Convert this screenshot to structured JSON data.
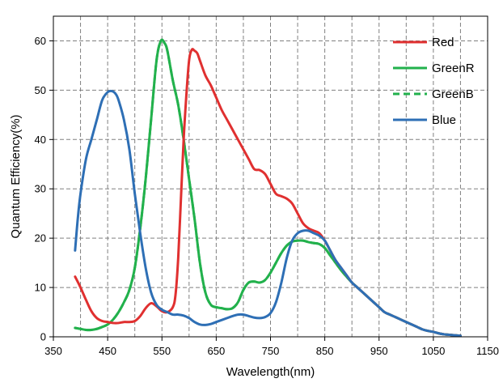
{
  "chart_data": {
    "type": "line",
    "title": "",
    "xlabel": "Wavelength(nm)",
    "ylabel": "Quantum Efficiency(%)",
    "xlim": [
      350,
      1150
    ],
    "ylim": [
      0,
      65
    ],
    "xticks": [
      350,
      450,
      550,
      650,
      750,
      850,
      950,
      1050,
      1150
    ],
    "yticks": [
      0,
      10,
      20,
      30,
      40,
      50,
      60
    ],
    "xgrid": [
      350,
      400,
      450,
      500,
      550,
      600,
      650,
      700,
      750,
      800,
      850,
      900,
      950,
      1000,
      1050,
      1100,
      1150
    ],
    "grid": true,
    "legend_position": "top-right",
    "series": [
      {
        "name": "Red",
        "color": "#e03030",
        "dash": "solid",
        "points": [
          [
            390,
            12.2
          ],
          [
            400,
            10
          ],
          [
            410,
            7.5
          ],
          [
            420,
            5.2
          ],
          [
            430,
            3.8
          ],
          [
            440,
            3.2
          ],
          [
            450,
            3
          ],
          [
            460,
            2.8
          ],
          [
            470,
            2.8
          ],
          [
            480,
            3
          ],
          [
            490,
            3
          ],
          [
            500,
            3.2
          ],
          [
            510,
            4.2
          ],
          [
            520,
            5.8
          ],
          [
            530,
            6.8
          ],
          [
            540,
            6.2
          ],
          [
            550,
            5.2
          ],
          [
            560,
            5
          ],
          [
            570,
            6
          ],
          [
            575,
            8.5
          ],
          [
            580,
            16
          ],
          [
            585,
            28
          ],
          [
            590,
            40
          ],
          [
            595,
            49
          ],
          [
            600,
            56
          ],
          [
            605,
            58.2
          ],
          [
            610,
            58
          ],
          [
            615,
            57.5
          ],
          [
            620,
            56
          ],
          [
            630,
            53
          ],
          [
            640,
            51
          ],
          [
            650,
            48.5
          ],
          [
            660,
            46
          ],
          [
            670,
            44
          ],
          [
            680,
            42
          ],
          [
            690,
            40
          ],
          [
            700,
            38
          ],
          [
            710,
            36
          ],
          [
            720,
            34
          ],
          [
            730,
            33.8
          ],
          [
            740,
            33
          ],
          [
            750,
            31
          ],
          [
            760,
            29
          ],
          [
            770,
            28.5
          ],
          [
            780,
            28
          ],
          [
            790,
            27
          ],
          [
            800,
            25
          ],
          [
            810,
            23
          ],
          [
            820,
            22
          ],
          [
            830,
            21.5
          ],
          [
            840,
            21
          ],
          [
            850,
            19.5
          ],
          [
            860,
            17.5
          ],
          [
            870,
            15.5
          ],
          [
            880,
            14
          ],
          [
            890,
            12.5
          ],
          [
            900,
            11
          ],
          [
            910,
            10
          ],
          [
            920,
            9
          ],
          [
            930,
            8
          ],
          [
            940,
            7
          ],
          [
            950,
            6
          ],
          [
            960,
            5
          ],
          [
            970,
            4.5
          ],
          [
            980,
            4
          ],
          [
            990,
            3.5
          ],
          [
            1000,
            3
          ],
          [
            1010,
            2.5
          ],
          [
            1020,
            2
          ],
          [
            1030,
            1.5
          ],
          [
            1040,
            1.2
          ],
          [
            1050,
            1
          ],
          [
            1060,
            0.7
          ],
          [
            1070,
            0.5
          ],
          [
            1080,
            0.4
          ],
          [
            1090,
            0.3
          ],
          [
            1100,
            0.2
          ]
        ]
      },
      {
        "name": "GreenR",
        "color": "#22b14c",
        "dash": "solid",
        "points": [
          [
            390,
            1.8
          ],
          [
            400,
            1.6
          ],
          [
            410,
            1.4
          ],
          [
            420,
            1.4
          ],
          [
            430,
            1.6
          ],
          [
            440,
            2
          ],
          [
            450,
            2.5
          ],
          [
            460,
            3.5
          ],
          [
            470,
            5
          ],
          [
            480,
            7
          ],
          [
            490,
            9.5
          ],
          [
            500,
            14
          ],
          [
            510,
            22
          ],
          [
            520,
            32
          ],
          [
            530,
            44
          ],
          [
            540,
            56
          ],
          [
            548,
            60
          ],
          [
            555,
            59.5
          ],
          [
            560,
            58
          ],
          [
            570,
            52
          ],
          [
            580,
            47
          ],
          [
            590,
            40
          ],
          [
            600,
            32
          ],
          [
            610,
            24
          ],
          [
            620,
            15
          ],
          [
            630,
            9
          ],
          [
            640,
            6.5
          ],
          [
            650,
            6
          ],
          [
            660,
            5.8
          ],
          [
            670,
            5.6
          ],
          [
            680,
            5.8
          ],
          [
            690,
            7
          ],
          [
            700,
            9.5
          ],
          [
            710,
            11
          ],
          [
            720,
            11.2
          ],
          [
            730,
            11
          ],
          [
            740,
            11.5
          ],
          [
            750,
            13
          ],
          [
            760,
            15
          ],
          [
            770,
            17
          ],
          [
            780,
            18.5
          ],
          [
            790,
            19.3
          ],
          [
            800,
            19.5
          ],
          [
            810,
            19.5
          ],
          [
            820,
            19.2
          ],
          [
            830,
            19
          ],
          [
            840,
            18.8
          ],
          [
            850,
            18
          ],
          [
            860,
            16.5
          ],
          [
            870,
            15
          ],
          [
            880,
            13.5
          ],
          [
            890,
            12.2
          ],
          [
            900,
            11
          ],
          [
            910,
            10
          ],
          [
            920,
            9
          ],
          [
            930,
            8
          ],
          [
            940,
            7
          ],
          [
            950,
            6
          ],
          [
            960,
            5
          ],
          [
            970,
            4.5
          ],
          [
            980,
            4
          ],
          [
            990,
            3.5
          ],
          [
            1000,
            3
          ],
          [
            1010,
            2.5
          ],
          [
            1020,
            2
          ],
          [
            1030,
            1.5
          ],
          [
            1040,
            1.2
          ],
          [
            1050,
            1
          ],
          [
            1060,
            0.7
          ],
          [
            1070,
            0.5
          ],
          [
            1080,
            0.4
          ],
          [
            1090,
            0.3
          ],
          [
            1100,
            0.2
          ]
        ]
      },
      {
        "name": "GreenB",
        "color": "#22b14c",
        "dash": "dashed",
        "points": [
          [
            390,
            1.8
          ],
          [
            400,
            1.6
          ],
          [
            410,
            1.4
          ],
          [
            420,
            1.4
          ],
          [
            430,
            1.6
          ],
          [
            440,
            2
          ],
          [
            450,
            2.5
          ],
          [
            460,
            3.5
          ],
          [
            470,
            5
          ],
          [
            480,
            7
          ],
          [
            490,
            9.5
          ],
          [
            500,
            14
          ],
          [
            510,
            22
          ],
          [
            520,
            32
          ],
          [
            530,
            44
          ],
          [
            540,
            56
          ],
          [
            548,
            60
          ],
          [
            555,
            59.5
          ],
          [
            560,
            58
          ],
          [
            570,
            52
          ],
          [
            580,
            47
          ],
          [
            590,
            40
          ],
          [
            600,
            32
          ],
          [
            610,
            24
          ],
          [
            620,
            15
          ],
          [
            630,
            9
          ],
          [
            640,
            6.5
          ],
          [
            650,
            6
          ],
          [
            660,
            5.8
          ],
          [
            670,
            5.6
          ],
          [
            680,
            5.8
          ],
          [
            690,
            7
          ],
          [
            700,
            9.5
          ],
          [
            710,
            11
          ],
          [
            720,
            11.2
          ],
          [
            730,
            11
          ],
          [
            740,
            11.5
          ],
          [
            750,
            13
          ],
          [
            760,
            15
          ],
          [
            770,
            17
          ],
          [
            780,
            18.5
          ],
          [
            790,
            19.3
          ],
          [
            800,
            19.5
          ],
          [
            810,
            19.5
          ],
          [
            820,
            19.2
          ],
          [
            830,
            19
          ],
          [
            840,
            18.8
          ],
          [
            850,
            18
          ],
          [
            860,
            16.5
          ],
          [
            870,
            15
          ],
          [
            880,
            13.5
          ],
          [
            890,
            12.2
          ],
          [
            900,
            11
          ],
          [
            910,
            10
          ],
          [
            920,
            9
          ],
          [
            930,
            8
          ],
          [
            940,
            7
          ],
          [
            950,
            6
          ],
          [
            960,
            5
          ],
          [
            970,
            4.5
          ],
          [
            980,
            4
          ],
          [
            990,
            3.5
          ],
          [
            1000,
            3
          ],
          [
            1010,
            2.5
          ],
          [
            1020,
            2
          ],
          [
            1030,
            1.5
          ],
          [
            1040,
            1.2
          ],
          [
            1050,
            1
          ],
          [
            1060,
            0.7
          ],
          [
            1070,
            0.5
          ],
          [
            1080,
            0.4
          ],
          [
            1090,
            0.3
          ],
          [
            1100,
            0.2
          ]
        ]
      },
      {
        "name": "Blue",
        "color": "#2e6fb5",
        "dash": "solid",
        "points": [
          [
            390,
            17.5
          ],
          [
            395,
            24
          ],
          [
            400,
            29
          ],
          [
            410,
            36
          ],
          [
            420,
            40
          ],
          [
            430,
            44
          ],
          [
            440,
            48
          ],
          [
            450,
            49.6
          ],
          [
            458,
            49.8
          ],
          [
            465,
            49.2
          ],
          [
            470,
            48
          ],
          [
            480,
            44
          ],
          [
            490,
            38
          ],
          [
            500,
            29
          ],
          [
            510,
            21
          ],
          [
            520,
            14
          ],
          [
            530,
            9
          ],
          [
            540,
            6.5
          ],
          [
            550,
            5.5
          ],
          [
            560,
            5
          ],
          [
            570,
            4.5
          ],
          [
            580,
            4.5
          ],
          [
            590,
            4.3
          ],
          [
            600,
            3.8
          ],
          [
            610,
            3
          ],
          [
            620,
            2.5
          ],
          [
            630,
            2.4
          ],
          [
            640,
            2.6
          ],
          [
            650,
            3
          ],
          [
            660,
            3.4
          ],
          [
            670,
            3.8
          ],
          [
            680,
            4.2
          ],
          [
            690,
            4.5
          ],
          [
            700,
            4.5
          ],
          [
            710,
            4.2
          ],
          [
            720,
            3.9
          ],
          [
            730,
            3.8
          ],
          [
            740,
            4
          ],
          [
            750,
            4.8
          ],
          [
            760,
            7
          ],
          [
            770,
            11
          ],
          [
            780,
            16
          ],
          [
            790,
            19.5
          ],
          [
            800,
            21
          ],
          [
            810,
            21.5
          ],
          [
            820,
            21.5
          ],
          [
            830,
            21
          ],
          [
            840,
            20.5
          ],
          [
            850,
            19.5
          ],
          [
            860,
            17.5
          ],
          [
            870,
            15.5
          ],
          [
            880,
            14
          ],
          [
            890,
            12.5
          ],
          [
            900,
            11
          ],
          [
            910,
            10
          ],
          [
            920,
            9
          ],
          [
            930,
            8
          ],
          [
            940,
            7
          ],
          [
            950,
            6
          ],
          [
            960,
            5
          ],
          [
            970,
            4.5
          ],
          [
            980,
            4
          ],
          [
            990,
            3.5
          ],
          [
            1000,
            3
          ],
          [
            1010,
            2.5
          ],
          [
            1020,
            2
          ],
          [
            1030,
            1.5
          ],
          [
            1040,
            1.2
          ],
          [
            1050,
            1
          ],
          [
            1060,
            0.7
          ],
          [
            1070,
            0.5
          ],
          [
            1080,
            0.4
          ],
          [
            1090,
            0.3
          ],
          [
            1100,
            0.2
          ]
        ]
      }
    ]
  }
}
